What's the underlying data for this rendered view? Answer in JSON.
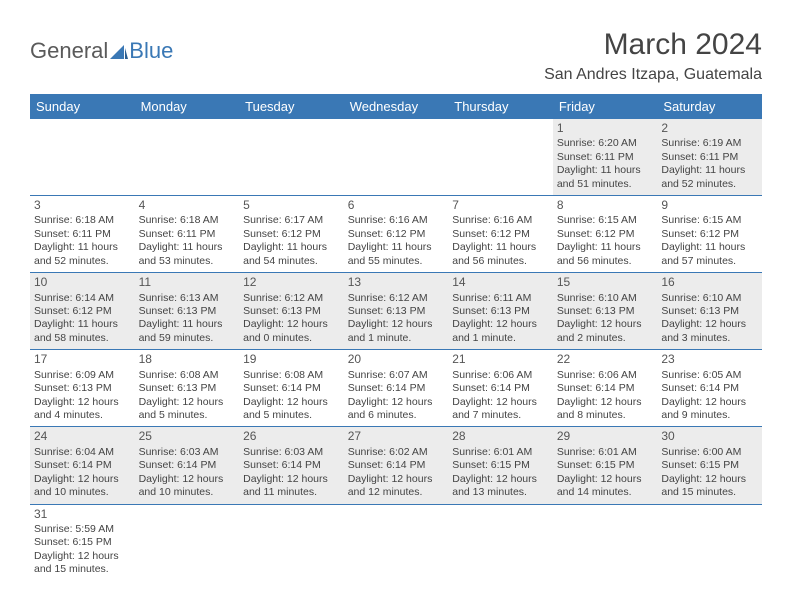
{
  "logo": {
    "general": "General",
    "blue": "Blue"
  },
  "title": "March 2024",
  "location": "San Andres Itzapa, Guatemala",
  "colors": {
    "header_bg": "#3a78b5",
    "row_divider": "#3a78b5",
    "alt_row": "#ececec"
  },
  "weekdays": [
    "Sunday",
    "Monday",
    "Tuesday",
    "Wednesday",
    "Thursday",
    "Friday",
    "Saturday"
  ],
  "weeks": [
    [
      null,
      null,
      null,
      null,
      null,
      {
        "n": "1",
        "sr": "Sunrise: 6:20 AM",
        "ss": "Sunset: 6:11 PM",
        "dl": "Daylight: 11 hours and 51 minutes."
      },
      {
        "n": "2",
        "sr": "Sunrise: 6:19 AM",
        "ss": "Sunset: 6:11 PM",
        "dl": "Daylight: 11 hours and 52 minutes."
      }
    ],
    [
      {
        "n": "3",
        "sr": "Sunrise: 6:18 AM",
        "ss": "Sunset: 6:11 PM",
        "dl": "Daylight: 11 hours and 52 minutes."
      },
      {
        "n": "4",
        "sr": "Sunrise: 6:18 AM",
        "ss": "Sunset: 6:11 PM",
        "dl": "Daylight: 11 hours and 53 minutes."
      },
      {
        "n": "5",
        "sr": "Sunrise: 6:17 AM",
        "ss": "Sunset: 6:12 PM",
        "dl": "Daylight: 11 hours and 54 minutes."
      },
      {
        "n": "6",
        "sr": "Sunrise: 6:16 AM",
        "ss": "Sunset: 6:12 PM",
        "dl": "Daylight: 11 hours and 55 minutes."
      },
      {
        "n": "7",
        "sr": "Sunrise: 6:16 AM",
        "ss": "Sunset: 6:12 PM",
        "dl": "Daylight: 11 hours and 56 minutes."
      },
      {
        "n": "8",
        "sr": "Sunrise: 6:15 AM",
        "ss": "Sunset: 6:12 PM",
        "dl": "Daylight: 11 hours and 56 minutes."
      },
      {
        "n": "9",
        "sr": "Sunrise: 6:15 AM",
        "ss": "Sunset: 6:12 PM",
        "dl": "Daylight: 11 hours and 57 minutes."
      }
    ],
    [
      {
        "n": "10",
        "sr": "Sunrise: 6:14 AM",
        "ss": "Sunset: 6:12 PM",
        "dl": "Daylight: 11 hours and 58 minutes."
      },
      {
        "n": "11",
        "sr": "Sunrise: 6:13 AM",
        "ss": "Sunset: 6:13 PM",
        "dl": "Daylight: 11 hours and 59 minutes."
      },
      {
        "n": "12",
        "sr": "Sunrise: 6:12 AM",
        "ss": "Sunset: 6:13 PM",
        "dl": "Daylight: 12 hours and 0 minutes."
      },
      {
        "n": "13",
        "sr": "Sunrise: 6:12 AM",
        "ss": "Sunset: 6:13 PM",
        "dl": "Daylight: 12 hours and 1 minute."
      },
      {
        "n": "14",
        "sr": "Sunrise: 6:11 AM",
        "ss": "Sunset: 6:13 PM",
        "dl": "Daylight: 12 hours and 1 minute."
      },
      {
        "n": "15",
        "sr": "Sunrise: 6:10 AM",
        "ss": "Sunset: 6:13 PM",
        "dl": "Daylight: 12 hours and 2 minutes."
      },
      {
        "n": "16",
        "sr": "Sunrise: 6:10 AM",
        "ss": "Sunset: 6:13 PM",
        "dl": "Daylight: 12 hours and 3 minutes."
      }
    ],
    [
      {
        "n": "17",
        "sr": "Sunrise: 6:09 AM",
        "ss": "Sunset: 6:13 PM",
        "dl": "Daylight: 12 hours and 4 minutes."
      },
      {
        "n": "18",
        "sr": "Sunrise: 6:08 AM",
        "ss": "Sunset: 6:13 PM",
        "dl": "Daylight: 12 hours and 5 minutes."
      },
      {
        "n": "19",
        "sr": "Sunrise: 6:08 AM",
        "ss": "Sunset: 6:14 PM",
        "dl": "Daylight: 12 hours and 5 minutes."
      },
      {
        "n": "20",
        "sr": "Sunrise: 6:07 AM",
        "ss": "Sunset: 6:14 PM",
        "dl": "Daylight: 12 hours and 6 minutes."
      },
      {
        "n": "21",
        "sr": "Sunrise: 6:06 AM",
        "ss": "Sunset: 6:14 PM",
        "dl": "Daylight: 12 hours and 7 minutes."
      },
      {
        "n": "22",
        "sr": "Sunrise: 6:06 AM",
        "ss": "Sunset: 6:14 PM",
        "dl": "Daylight: 12 hours and 8 minutes."
      },
      {
        "n": "23",
        "sr": "Sunrise: 6:05 AM",
        "ss": "Sunset: 6:14 PM",
        "dl": "Daylight: 12 hours and 9 minutes."
      }
    ],
    [
      {
        "n": "24",
        "sr": "Sunrise: 6:04 AM",
        "ss": "Sunset: 6:14 PM",
        "dl": "Daylight: 12 hours and 10 minutes."
      },
      {
        "n": "25",
        "sr": "Sunrise: 6:03 AM",
        "ss": "Sunset: 6:14 PM",
        "dl": "Daylight: 12 hours and 10 minutes."
      },
      {
        "n": "26",
        "sr": "Sunrise: 6:03 AM",
        "ss": "Sunset: 6:14 PM",
        "dl": "Daylight: 12 hours and 11 minutes."
      },
      {
        "n": "27",
        "sr": "Sunrise: 6:02 AM",
        "ss": "Sunset: 6:14 PM",
        "dl": "Daylight: 12 hours and 12 minutes."
      },
      {
        "n": "28",
        "sr": "Sunrise: 6:01 AM",
        "ss": "Sunset: 6:15 PM",
        "dl": "Daylight: 12 hours and 13 minutes."
      },
      {
        "n": "29",
        "sr": "Sunrise: 6:01 AM",
        "ss": "Sunset: 6:15 PM",
        "dl": "Daylight: 12 hours and 14 minutes."
      },
      {
        "n": "30",
        "sr": "Sunrise: 6:00 AM",
        "ss": "Sunset: 6:15 PM",
        "dl": "Daylight: 12 hours and 15 minutes."
      }
    ],
    [
      {
        "n": "31",
        "sr": "Sunrise: 5:59 AM",
        "ss": "Sunset: 6:15 PM",
        "dl": "Daylight: 12 hours and 15 minutes."
      },
      null,
      null,
      null,
      null,
      null,
      null
    ]
  ]
}
